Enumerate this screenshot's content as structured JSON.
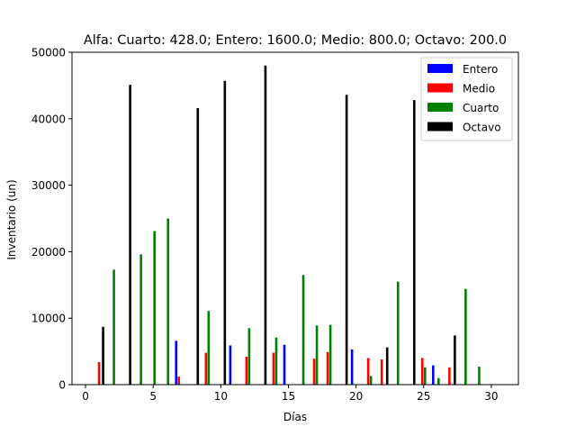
{
  "chart_data": {
    "type": "bar",
    "title": "Alfa: Cuarto: 428.0; Entero: 1600.0; Medio: 800.0; Octavo: 200.0",
    "xlabel": "Días",
    "ylabel": "Inventario (un)",
    "xlim": [
      -1,
      32
    ],
    "ylim": [
      0,
      50000
    ],
    "xticks": [
      0,
      5,
      10,
      15,
      20,
      25,
      30
    ],
    "yticks": [
      0,
      10000,
      20000,
      30000,
      40000,
      50000
    ],
    "grid": false,
    "legend_position": "top-right",
    "series": [
      {
        "name": "Entero",
        "color": "#0000ff",
        "points": [
          [
            6.7,
            6600
          ],
          [
            10.7,
            5900
          ],
          [
            14.7,
            6000
          ],
          [
            19.7,
            5300
          ],
          [
            25.7,
            2900
          ]
        ]
      },
      {
        "name": "Medio",
        "color": "#ff0000",
        "points": [
          [
            1,
            3400
          ],
          [
            6.9,
            1200
          ],
          [
            8.9,
            4800
          ],
          [
            11.9,
            4200
          ],
          [
            13.9,
            4800
          ],
          [
            16.9,
            3900
          ],
          [
            17.9,
            4900
          ],
          [
            20.9,
            4000
          ],
          [
            21.9,
            3800
          ],
          [
            24.9,
            4000
          ],
          [
            26.9,
            2600
          ]
        ]
      },
      {
        "name": "Cuarto",
        "color": "#008000",
        "points": [
          [
            2.1,
            17300
          ],
          [
            4.1,
            19600
          ],
          [
            5.1,
            23100
          ],
          [
            6.1,
            25000
          ],
          [
            9.1,
            11100
          ],
          [
            12.1,
            8500
          ],
          [
            14.1,
            7100
          ],
          [
            16.1,
            16500
          ],
          [
            17.1,
            8900
          ],
          [
            18.1,
            9000
          ],
          [
            21.1,
            1300
          ],
          [
            23.1,
            15500
          ],
          [
            25.1,
            2600
          ],
          [
            26.1,
            1000
          ],
          [
            28.1,
            14400
          ],
          [
            29.1,
            2700
          ]
        ]
      },
      {
        "name": "Octavo",
        "color": "#000000",
        "points": [
          [
            1.3,
            8700
          ],
          [
            3.3,
            45100
          ],
          [
            8.3,
            41600
          ],
          [
            10.3,
            45700
          ],
          [
            13.3,
            48000
          ],
          [
            19.3,
            43600
          ],
          [
            22.3,
            5600
          ],
          [
            24.3,
            42800
          ],
          [
            27.3,
            7400
          ]
        ]
      }
    ]
  }
}
